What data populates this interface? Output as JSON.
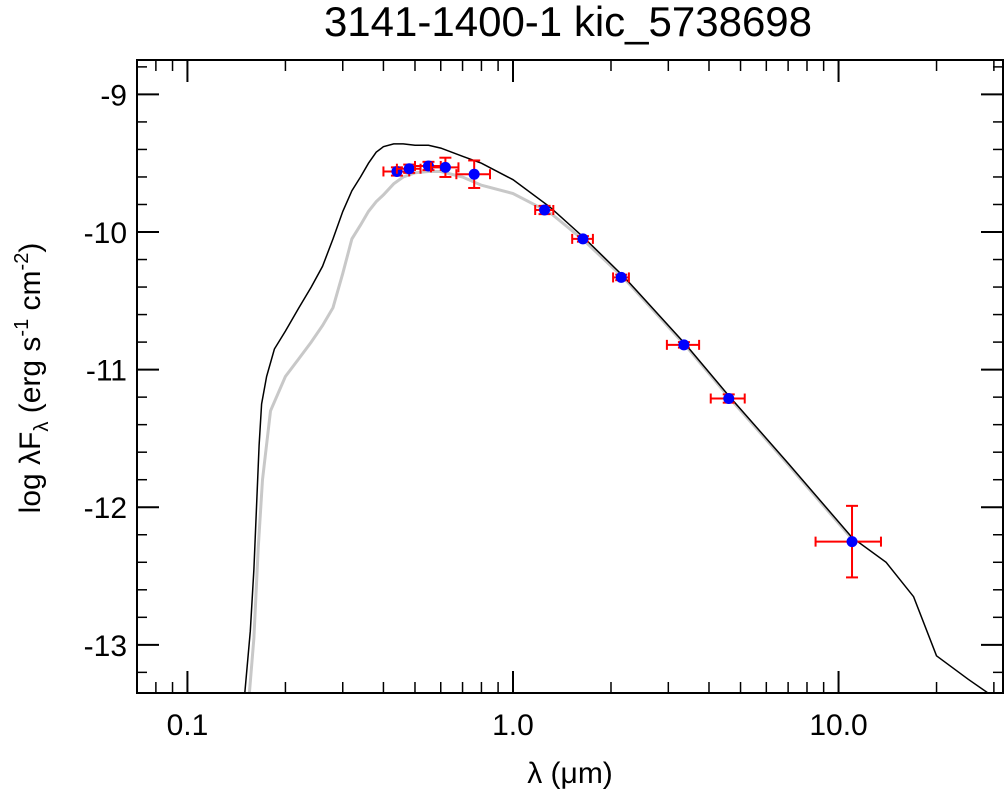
{
  "chart_data": {
    "type": "scatter",
    "title": "3141-1400-1   kic_5738698",
    "xlabel": "λ (μm)",
    "ylabel": {
      "prefix": "log λF",
      "sub": "λ",
      "mid": " (erg s",
      "sup1": "-1",
      "mid2": " cm",
      "sup2": "-2",
      "suffix": ")"
    },
    "xscale": "log",
    "xlim": [
      0.07,
      32
    ],
    "ylim": [
      -13.35,
      -8.75
    ],
    "xticks": [
      {
        "value": 0.1,
        "label": "0.1"
      },
      {
        "value": 1.0,
        "label": "1.0"
      },
      {
        "value": 10.0,
        "label": "10.0"
      }
    ],
    "yticks": [
      {
        "value": -9,
        "label": "-9"
      },
      {
        "value": -10,
        "label": "-10"
      },
      {
        "value": -11,
        "label": "-11"
      },
      {
        "value": -12,
        "label": "-12"
      },
      {
        "value": -13,
        "label": "-13"
      }
    ],
    "colors": {
      "model_black": "#000000",
      "model_gray": "#c8c8c8",
      "points": "#0000ff",
      "errorbars": "#ff0000"
    },
    "model_black": {
      "name": "",
      "x": [
        0.15,
        0.156,
        0.16,
        0.163,
        0.166,
        0.169,
        0.175,
        0.185,
        0.2,
        0.22,
        0.24,
        0.26,
        0.28,
        0.3,
        0.32,
        0.34,
        0.36,
        0.38,
        0.4,
        0.43,
        0.46,
        0.5,
        0.55,
        0.6,
        0.7,
        0.8,
        1.0,
        1.3,
        1.65,
        2.2,
        3.4,
        4.6,
        7.0,
        11.0,
        14.0,
        17.0,
        20.0,
        25.0,
        30.0
      ],
      "y": [
        -13.35,
        -12.9,
        -12.45,
        -12.0,
        -11.55,
        -11.25,
        -11.05,
        -10.85,
        -10.72,
        -10.55,
        -10.4,
        -10.25,
        -10.05,
        -9.85,
        -9.7,
        -9.6,
        -9.5,
        -9.42,
        -9.38,
        -9.36,
        -9.36,
        -9.37,
        -9.37,
        -9.39,
        -9.45,
        -9.5,
        -9.62,
        -9.82,
        -10.04,
        -10.33,
        -10.82,
        -11.19,
        -11.68,
        -12.22,
        -12.4,
        -12.65,
        -13.08,
        -13.25,
        -13.38
      ]
    },
    "model_gray": {
      "name": "",
      "x": [
        0.155,
        0.16,
        0.165,
        0.17,
        0.18,
        0.2,
        0.22,
        0.24,
        0.26,
        0.28,
        0.3,
        0.32,
        0.34,
        0.36,
        0.38,
        0.4,
        0.43,
        0.46,
        0.5,
        0.55,
        0.6,
        0.7,
        0.8,
        1.0,
        1.3,
        1.65,
        2.2,
        3.4,
        4.6,
        7.0,
        11.0
      ],
      "y": [
        -13.35,
        -12.95,
        -12.3,
        -11.8,
        -11.3,
        -11.05,
        -10.92,
        -10.8,
        -10.68,
        -10.55,
        -10.3,
        -10.05,
        -9.95,
        -9.85,
        -9.78,
        -9.73,
        -9.65,
        -9.6,
        -9.57,
        -9.56,
        -9.56,
        -9.6,
        -9.66,
        -9.72,
        -9.86,
        -10.06,
        -10.34,
        -10.83,
        -11.2,
        -11.69,
        -12.23
      ]
    },
    "points": [
      {
        "x": 0.44,
        "y": -9.56,
        "xerr": 0.04,
        "yerr": 0.03
      },
      {
        "x": 0.48,
        "y": -9.54,
        "xerr": 0.04,
        "yerr": 0.03
      },
      {
        "x": 0.55,
        "y": -9.52,
        "xerr": 0.05,
        "yerr": 0.03
      },
      {
        "x": 0.62,
        "y": -9.53,
        "xerr": 0.06,
        "yerr": 0.07
      },
      {
        "x": 0.76,
        "y": -9.58,
        "xerr": 0.09,
        "yerr": 0.1
      },
      {
        "x": 1.25,
        "y": -9.84,
        "xerr": 0.08,
        "yerr": 0.03
      },
      {
        "x": 1.64,
        "y": -10.05,
        "xerr": 0.12,
        "yerr": 0.02
      },
      {
        "x": 2.15,
        "y": -10.33,
        "xerr": 0.12,
        "yerr": 0.02
      },
      {
        "x": 3.35,
        "y": -10.82,
        "xerr": 0.38,
        "yerr": 0.02
      },
      {
        "x": 4.6,
        "y": -11.21,
        "xerr": 0.55,
        "yerr": 0.03
      },
      {
        "x": 11.0,
        "y": -12.25,
        "xerr": 2.5,
        "yerr": 0.26
      }
    ],
    "grid": false,
    "legend": "none"
  }
}
